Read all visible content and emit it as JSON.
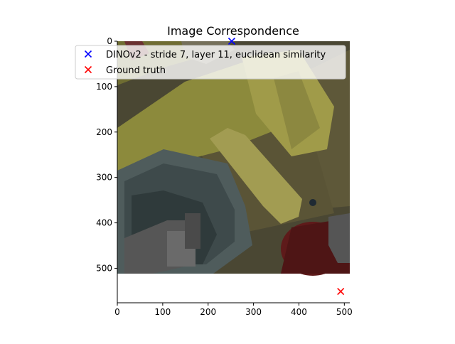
{
  "chart_data": {
    "type": "scatter",
    "title": "Image Correspondence",
    "xlabel": "",
    "ylabel": "",
    "xlim": [
      0,
      512
    ],
    "ylim": [
      576,
      0
    ],
    "image_extent": [
      0,
      512,
      512,
      0
    ],
    "x_ticks": [
      0,
      100,
      200,
      300,
      400,
      500
    ],
    "y_ticks": [
      0,
      100,
      200,
      300,
      400,
      500
    ],
    "legend_position": "upper-left",
    "series": [
      {
        "name": "DINOv2 - stride 7, layer 11, euclidean similarity",
        "marker": "x",
        "color": "#0000ff",
        "points": [
          {
            "x": 252,
            "y": 0
          }
        ]
      },
      {
        "name": "Ground truth",
        "marker": "x",
        "color": "#ff0000",
        "points": [
          {
            "x": 492,
            "y": 551
          }
        ]
      }
    ]
  }
}
